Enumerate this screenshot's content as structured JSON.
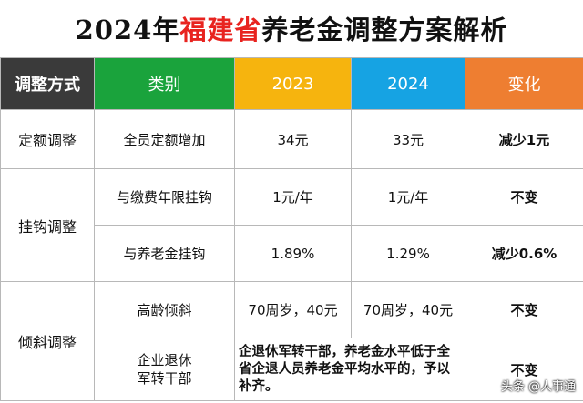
{
  "title": {
    "prefix": "2024年",
    "highlight": "福建省",
    "suffix": "养老金调整方案解析"
  },
  "header": {
    "method": "调整方式",
    "category": "类别",
    "y2023": "2023",
    "y2024": "2024",
    "change": "变化"
  },
  "rows": [
    {
      "method": "定额调整",
      "category": "全员定额增加",
      "y2023": "34元",
      "y2024": "33元",
      "change": "减少1元"
    },
    {
      "method": "挂钩调整",
      "category": "与缴费年限挂钩",
      "y2023": "1元/年",
      "y2024": "1元/年",
      "change": "不变"
    },
    {
      "category": "与养老金挂钩",
      "y2023": "1.89%",
      "y2024": "1.29%",
      "change": "减少0.6%"
    },
    {
      "method": "倾斜调整",
      "category": "高龄倾斜",
      "y2023": "70周岁，40元",
      "y2024": "70周岁，40元",
      "change": "不变"
    },
    {
      "category_line1": "企业退休",
      "category_line2": "军转干部",
      "note": "企退休军转干部，养老金水平低于全省企退人员养老金平均水平的，予以补齐。",
      "change": "不变"
    }
  ],
  "watermark": "头条 @人事通",
  "colors": {
    "method": "#3a3a3a",
    "category": "#1aa33c",
    "y2023": "#f6b40e",
    "y2024": "#16a3e3",
    "change": "#ee7e31",
    "highlight": "#e8231f"
  }
}
